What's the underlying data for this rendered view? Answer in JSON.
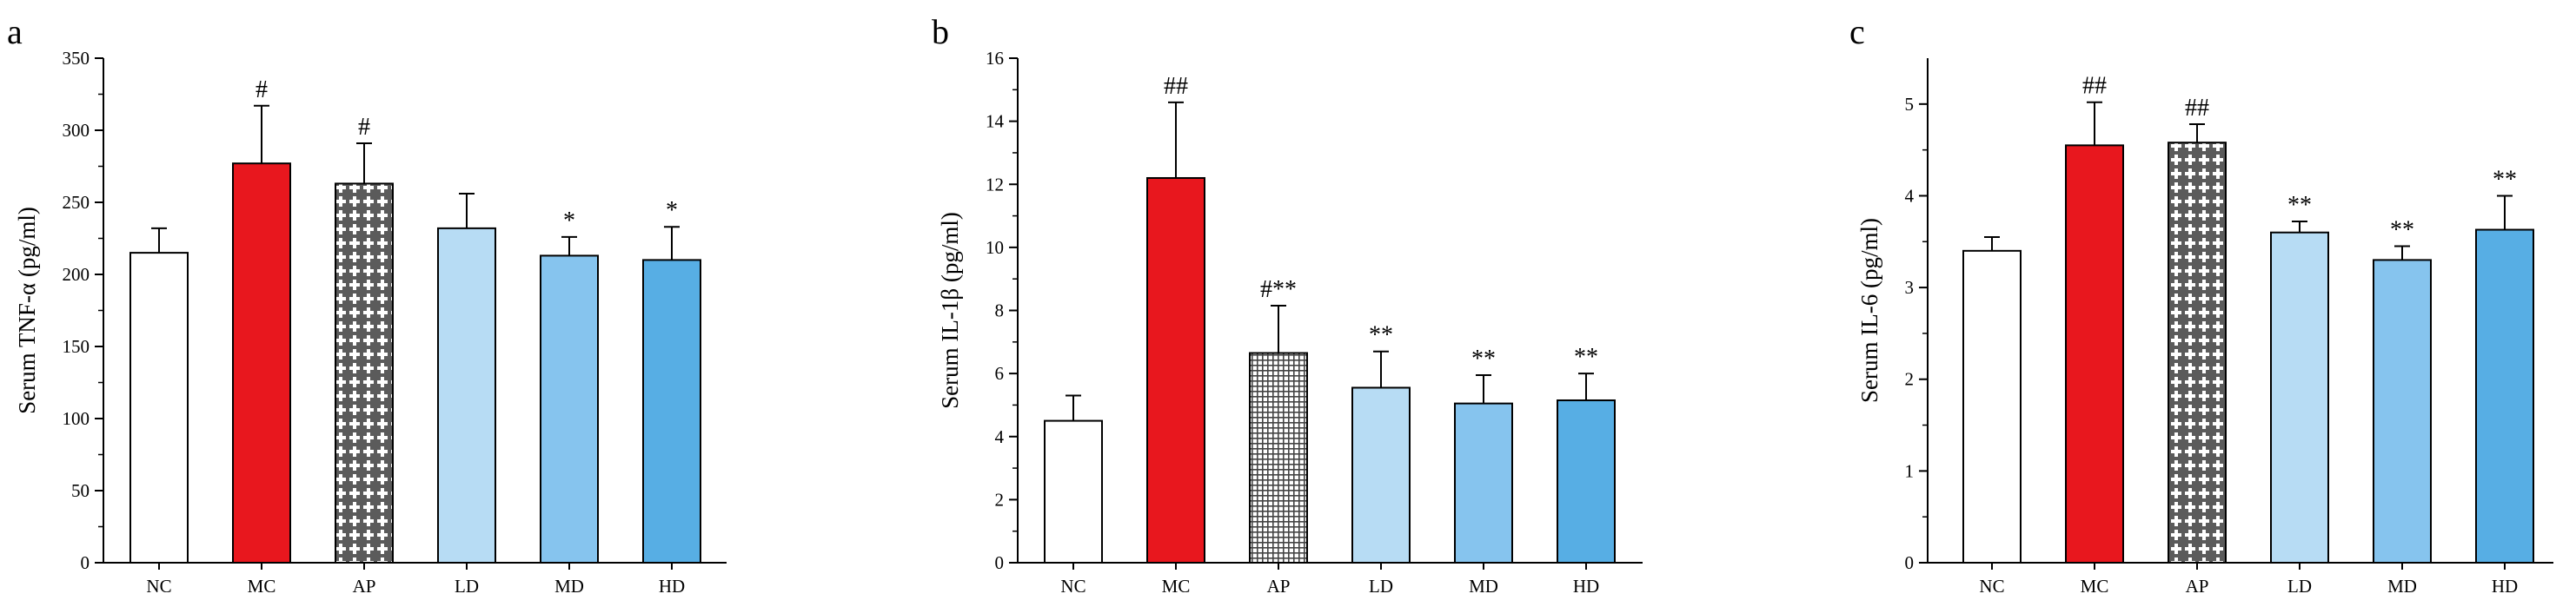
{
  "chart_data": [
    {
      "type": "bar",
      "panel": "a",
      "ylabel": "Serum TNF-α (pg/ml)",
      "ylim": [
        0,
        350
      ],
      "yticks": [
        0,
        50,
        100,
        150,
        200,
        250,
        300,
        350
      ],
      "categories": [
        "NC",
        "MC",
        "AP",
        "LD",
        "MD",
        "HD"
      ],
      "values": [
        215,
        277,
        263,
        232,
        213,
        210
      ],
      "errors": [
        17,
        40,
        28,
        24,
        13,
        23
      ],
      "fills": [
        "#ffffff",
        "#e8171e",
        "pattern-cross",
        "#b7dcf4",
        "#86c4ee",
        "#57aee4"
      ],
      "labels": [
        "",
        "#",
        "#",
        "",
        "*",
        "*"
      ]
    },
    {
      "type": "bar",
      "panel": "b",
      "ylabel": "Serum IL-1β (pg/ml)",
      "ylim": [
        0,
        16
      ],
      "yticks": [
        0,
        2,
        4,
        6,
        8,
        10,
        12,
        14,
        16
      ],
      "categories": [
        "NC",
        "MC",
        "AP",
        "LD",
        "MD",
        "HD"
      ],
      "values": [
        4.5,
        12.2,
        6.65,
        5.55,
        5.05,
        5.15
      ],
      "errors": [
        0.8,
        2.4,
        1.5,
        1.15,
        0.9,
        0.85
      ],
      "fills": [
        "#ffffff",
        "#e8171e",
        "pattern-grid",
        "#b7dcf4",
        "#86c4ee",
        "#57aee4"
      ],
      "labels": [
        "",
        "##",
        "#**",
        "**",
        "**",
        "**"
      ]
    },
    {
      "type": "bar",
      "panel": "c",
      "ylabel": "Serum IL-6 (pg/ml)",
      "ylim": [
        0,
        5.5
      ],
      "yticks": [
        0,
        1,
        2,
        3,
        4,
        5
      ],
      "categories": [
        "NC",
        "MC",
        "AP",
        "LD",
        "MD",
        "HD"
      ],
      "values": [
        3.4,
        4.55,
        4.58,
        3.6,
        3.3,
        3.63
      ],
      "errors": [
        0.15,
        0.47,
        0.2,
        0.12,
        0.15,
        0.37
      ],
      "fills": [
        "#ffffff",
        "#e8171e",
        "pattern-cross",
        "#b7dcf4",
        "#86c4ee",
        "#57aee4"
      ],
      "labels": [
        "",
        "##",
        "##",
        "**",
        "**",
        "**"
      ]
    }
  ]
}
